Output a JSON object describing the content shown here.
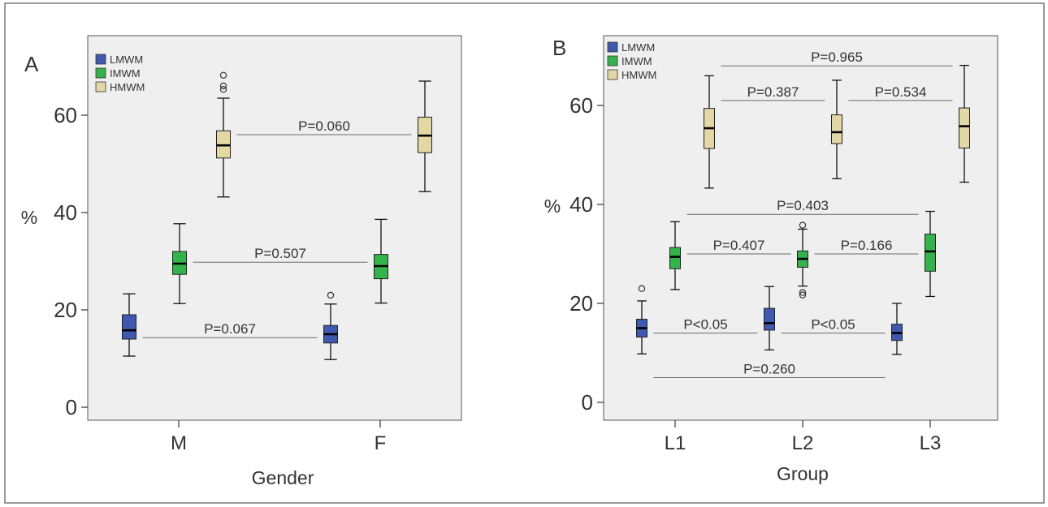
{
  "chart_data": [
    {
      "panel_label": "A",
      "type": "box",
      "xlabel": "Gender",
      "ylabel": "%",
      "ylim": [
        -3,
        73
      ],
      "yticks": [
        0,
        20,
        40,
        60
      ],
      "categories": [
        "M",
        "F"
      ],
      "legend": {
        "placement": "top-left",
        "entries": [
          {
            "name": "LMWM",
            "color": "#3f58b0"
          },
          {
            "name": "IMWM",
            "color": "#33b44a"
          },
          {
            "name": "HMWM",
            "color": "#e3d7a4"
          }
        ]
      },
      "series": [
        {
          "name": "LMWM",
          "boxes": [
            {
              "category": "M",
              "min": 10.5,
              "q1": 14.0,
              "median": 15.8,
              "q3": 19.0,
              "max": 23.3,
              "outliers": []
            },
            {
              "category": "F",
              "min": 9.8,
              "q1": 13.2,
              "median": 15.0,
              "q3": 16.8,
              "max": 21.2,
              "outliers": [
                23.0
              ]
            }
          ]
        },
        {
          "name": "IMWM",
          "boxes": [
            {
              "category": "M",
              "min": 21.3,
              "q1": 27.3,
              "median": 29.5,
              "q3": 32.0,
              "max": 37.7,
              "outliers": []
            },
            {
              "category": "F",
              "min": 21.4,
              "q1": 26.4,
              "median": 29.0,
              "q3": 31.4,
              "max": 38.6,
              "outliers": []
            }
          ]
        },
        {
          "name": "HMWM",
          "boxes": [
            {
              "category": "M",
              "min": 43.2,
              "q1": 51.2,
              "median": 53.8,
              "q3": 56.8,
              "max": 63.5,
              "outliers": [
                65.3,
                66.0,
                68.2
              ]
            },
            {
              "category": "F",
              "min": 44.3,
              "q1": 52.3,
              "median": 55.8,
              "q3": 59.6,
              "max": 67.0,
              "outliers": []
            }
          ]
        }
      ],
      "annotations": [
        {
          "text": "P=0.060",
          "from": "M:HMWM",
          "to": "F:HMWM",
          "y": 56.0
        },
        {
          "text": "P=0.507",
          "from": "M:IMWM",
          "to": "F:IMWM",
          "y": 29.8
        },
        {
          "text": "P=0.067",
          "from": "M:LMWM",
          "to": "F:LMWM",
          "y": 14.3
        }
      ]
    },
    {
      "panel_label": "B",
      "type": "box",
      "xlabel": "Group",
      "ylabel": "%",
      "ylim": [
        -3,
        73
      ],
      "yticks": [
        0,
        20,
        40,
        60
      ],
      "categories": [
        "L1",
        "L2",
        "L3"
      ],
      "legend": {
        "placement": "top-left",
        "entries": [
          {
            "name": "LMWM",
            "color": "#3f58b0"
          },
          {
            "name": "IMWM",
            "color": "#33b44a"
          },
          {
            "name": "HMWM",
            "color": "#e3d7a4"
          }
        ]
      },
      "series": [
        {
          "name": "LMWM",
          "boxes": [
            {
              "category": "L1",
              "min": 9.8,
              "q1": 13.2,
              "median": 15.0,
              "q3": 16.8,
              "max": 20.5,
              "outliers": [
                23.0
              ]
            },
            {
              "category": "L2",
              "min": 10.6,
              "q1": 14.6,
              "median": 16.0,
              "q3": 19.0,
              "max": 23.4,
              "outliers": []
            },
            {
              "category": "L3",
              "min": 9.7,
              "q1": 12.5,
              "median": 14.0,
              "q3": 15.8,
              "max": 20.0,
              "outliers": []
            }
          ]
        },
        {
          "name": "IMWM",
          "boxes": [
            {
              "category": "L1",
              "min": 22.8,
              "q1": 27.0,
              "median": 29.4,
              "q3": 31.3,
              "max": 36.5,
              "outliers": []
            },
            {
              "category": "L2",
              "min": 23.5,
              "q1": 27.3,
              "median": 29.0,
              "q3": 30.6,
              "max": 35.0,
              "outliers": [
                35.8,
                22.2,
                21.7
              ]
            },
            {
              "category": "L3",
              "min": 21.4,
              "q1": 26.5,
              "median": 30.5,
              "q3": 34.0,
              "max": 38.6,
              "outliers": []
            }
          ]
        },
        {
          "name": "HMWM",
          "boxes": [
            {
              "category": "L1",
              "min": 43.3,
              "q1": 51.3,
              "median": 55.4,
              "q3": 59.4,
              "max": 66.0,
              "outliers": []
            },
            {
              "category": "L2",
              "min": 45.2,
              "q1": 52.3,
              "median": 54.6,
              "q3": 58.1,
              "max": 65.1,
              "outliers": []
            },
            {
              "category": "L3",
              "min": 44.5,
              "q1": 51.4,
              "median": 55.8,
              "q3": 59.5,
              "max": 68.1,
              "outliers": []
            }
          ]
        }
      ],
      "annotations": [
        {
          "text": "P=0.965",
          "from": "L1:HMWM",
          "to": "L3:HMWM",
          "y": 68.0
        },
        {
          "text": "P=0.387",
          "from": "L1:HMWM",
          "to": "L2:HMWM",
          "y": 61.0
        },
        {
          "text": "P=0.534",
          "from": "L2:HMWM",
          "to": "L3:HMWM",
          "y": 61.0
        },
        {
          "text": "P=0.403",
          "from": "L1:IMWM",
          "to": "L3:IMWM",
          "y": 38.0
        },
        {
          "text": "P=0.407",
          "from": "L1:IMWM",
          "to": "L2:IMWM",
          "y": 30.0
        },
        {
          "text": "P=0.166",
          "from": "L2:IMWM",
          "to": "L3:IMWM",
          "y": 30.0
        },
        {
          "text": "P<0.05",
          "from": "L1:LMWM",
          "to": "L2:LMWM",
          "y": 14.0
        },
        {
          "text": "P<0.05",
          "from": "L2:LMWM",
          "to": "L3:LMWM",
          "y": 14.0
        },
        {
          "text": "P=0.260",
          "from": "L1:LMWM",
          "to": "L3:LMWM",
          "y": 5.0
        }
      ]
    }
  ]
}
